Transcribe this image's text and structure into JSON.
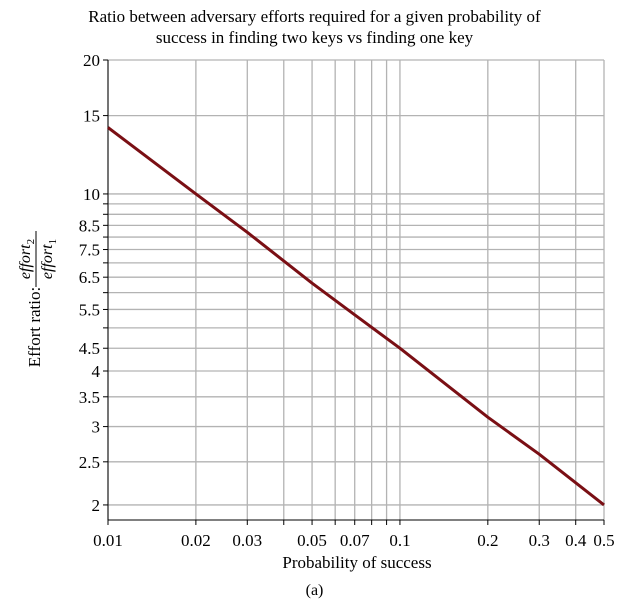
{
  "chart_data": {
    "type": "line",
    "title": [
      "Ratio between adversary efforts required for a given probability of",
      "success in finding two keys vs finding one key"
    ],
    "xlabel": "Probability of success",
    "ylabel": {
      "prefix": "Effort ratio:",
      "numerator": "effort",
      "numerator_sub": "2",
      "denominator": "effort",
      "denominator_sub": "1"
    },
    "x_scale": "log",
    "y_scale": "log",
    "xlim": [
      0.01,
      0.5
    ],
    "ylim": [
      1.85,
      20
    ],
    "grid": true,
    "x_ticks": [
      {
        "value": 0.01,
        "label": "0.01"
      },
      {
        "value": 0.02,
        "label": "0.02"
      },
      {
        "value": 0.03,
        "label": "0.03"
      },
      {
        "value": 0.05,
        "label": "0.05"
      },
      {
        "value": 0.07,
        "label": "0.07"
      },
      {
        "value": 0.1,
        "label": "0.1"
      },
      {
        "value": 0.2,
        "label": "0.2"
      },
      {
        "value": 0.3,
        "label": "0.3"
      },
      {
        "value": 0.4,
        "label": "0.4"
      },
      {
        "value": 0.5,
        "label": "0.5"
      }
    ],
    "x_grid": [
      0.01,
      0.02,
      0.03,
      0.04,
      0.05,
      0.06,
      0.07,
      0.08,
      0.09,
      0.1,
      0.2,
      0.3,
      0.4,
      0.5
    ],
    "y_ticks": [
      {
        "value": 2,
        "label": "2"
      },
      {
        "value": 2.5,
        "label": "2.5"
      },
      {
        "value": 3,
        "label": "3"
      },
      {
        "value": 3.5,
        "label": "3.5"
      },
      {
        "value": 4,
        "label": "4"
      },
      {
        "value": 4.5,
        "label": "4.5"
      },
      {
        "value": 5.5,
        "label": "5.5"
      },
      {
        "value": 6.5,
        "label": "6.5"
      },
      {
        "value": 7.5,
        "label": "7.5"
      },
      {
        "value": 8.5,
        "label": "8.5"
      },
      {
        "value": 10,
        "label": "10"
      },
      {
        "value": 15,
        "label": "15"
      },
      {
        "value": 20,
        "label": "20"
      }
    ],
    "y_grid": [
      2,
      2.5,
      3,
      3.5,
      4,
      4.5,
      5,
      5.5,
      6,
      6.5,
      7,
      7.5,
      8,
      8.5,
      9,
      9.5,
      10,
      15,
      20
    ],
    "series": [
      {
        "color": "#7a0f14",
        "x": [
          0.01,
          0.02,
          0.03,
          0.05,
          0.07,
          0.1,
          0.2,
          0.3,
          0.5
        ],
        "y": [
          14.1,
          10.0,
          8.2,
          6.3,
          5.35,
          4.5,
          3.15,
          2.6,
          2.0
        ]
      }
    ]
  },
  "caption": "(a)"
}
